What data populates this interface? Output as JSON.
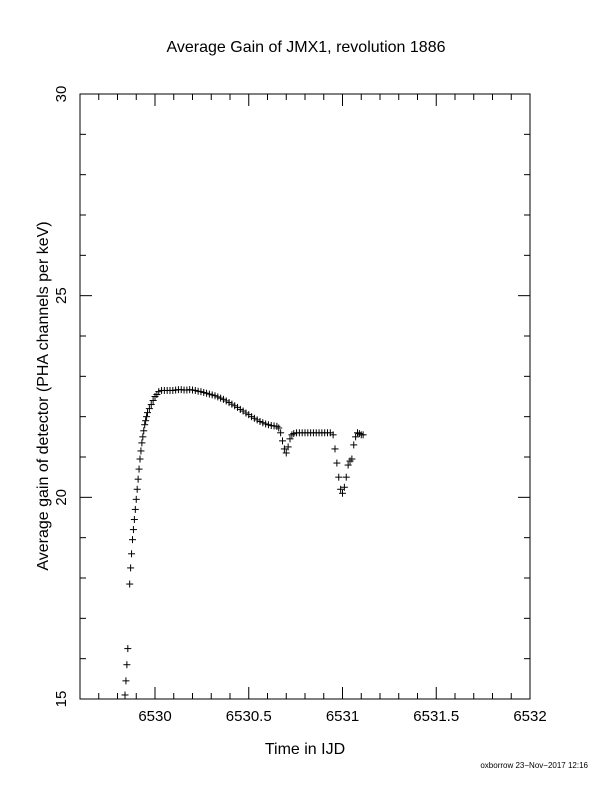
{
  "chart_data": {
    "type": "scatter",
    "title": "Average Gain of JMX1, revolution 1886",
    "xlabel": "Time in IJD",
    "ylabel": "Average gain of detector (PHA channels per keV)",
    "xlim": [
      6529.6,
      6532
    ],
    "ylim": [
      15,
      30
    ],
    "x_major_ticks": [
      6530,
      6530.5,
      6531,
      6531.5,
      6532
    ],
    "x_tick_labels": [
      "6530",
      "6530.5",
      "6531",
      "6531.5",
      "6532"
    ],
    "x_minor_step": 0.1,
    "y_major_ticks": [
      15,
      20,
      25,
      30
    ],
    "y_tick_labels": [
      "15",
      "20",
      "25",
      "30"
    ],
    "y_minor_step": 1,
    "grid": false,
    "marker": "plus",
    "color": "#000000",
    "points": [
      [
        6529.84,
        15.1
      ],
      [
        6529.845,
        15.45
      ],
      [
        6529.85,
        15.85
      ],
      [
        6529.855,
        16.25
      ],
      [
        6529.865,
        17.85
      ],
      [
        6529.87,
        18.25
      ],
      [
        6529.875,
        18.6
      ],
      [
        6529.88,
        18.95
      ],
      [
        6529.885,
        19.2
      ],
      [
        6529.89,
        19.45
      ],
      [
        6529.895,
        19.7
      ],
      [
        6529.9,
        19.95
      ],
      [
        6529.905,
        20.2
      ],
      [
        6529.91,
        20.45
      ],
      [
        6529.915,
        20.7
      ],
      [
        6529.92,
        20.95
      ],
      [
        6529.925,
        21.15
      ],
      [
        6529.93,
        21.35
      ],
      [
        6529.935,
        21.5
      ],
      [
        6529.94,
        21.65
      ],
      [
        6529.945,
        21.8
      ],
      [
        6529.95,
        21.9
      ],
      [
        6529.955,
        22.0
      ],
      [
        6529.96,
        22.1
      ],
      [
        6529.97,
        22.2
      ],
      [
        6529.98,
        22.3
      ],
      [
        6529.99,
        22.4
      ],
      [
        6530.0,
        22.5
      ],
      [
        6530.01,
        22.55
      ],
      [
        6530.02,
        22.62
      ],
      [
        6530.035,
        22.65
      ],
      [
        6530.05,
        22.65
      ],
      [
        6530.065,
        22.65
      ],
      [
        6530.08,
        22.65
      ],
      [
        6530.095,
        22.65
      ],
      [
        6530.11,
        22.66
      ],
      [
        6530.125,
        22.67
      ],
      [
        6530.14,
        22.67
      ],
      [
        6530.155,
        22.66
      ],
      [
        6530.17,
        22.66
      ],
      [
        6530.185,
        22.67
      ],
      [
        6530.2,
        22.66
      ],
      [
        6530.215,
        22.65
      ],
      [
        6530.23,
        22.63
      ],
      [
        6530.245,
        22.62
      ],
      [
        6530.26,
        22.6
      ],
      [
        6530.275,
        22.58
      ],
      [
        6530.29,
        22.56
      ],
      [
        6530.305,
        22.54
      ],
      [
        6530.32,
        22.52
      ],
      [
        6530.335,
        22.49
      ],
      [
        6530.35,
        22.46
      ],
      [
        6530.365,
        22.43
      ],
      [
        6530.38,
        22.39
      ],
      [
        6530.395,
        22.35
      ],
      [
        6530.41,
        22.31
      ],
      [
        6530.425,
        22.27
      ],
      [
        6530.44,
        22.23
      ],
      [
        6530.455,
        22.18
      ],
      [
        6530.47,
        22.14
      ],
      [
        6530.485,
        22.09
      ],
      [
        6530.5,
        22.05
      ],
      [
        6530.515,
        22.0
      ],
      [
        6530.53,
        21.96
      ],
      [
        6530.545,
        21.92
      ],
      [
        6530.56,
        21.88
      ],
      [
        6530.575,
        21.85
      ],
      [
        6530.59,
        21.82
      ],
      [
        6530.605,
        21.8
      ],
      [
        6530.62,
        21.78
      ],
      [
        6530.635,
        21.77
      ],
      [
        6530.65,
        21.76
      ],
      [
        6530.66,
        21.72
      ],
      [
        6530.67,
        21.6
      ],
      [
        6530.68,
        21.4
      ],
      [
        6530.69,
        21.2
      ],
      [
        6530.7,
        21.1
      ],
      [
        6530.71,
        21.25
      ],
      [
        6530.72,
        21.45
      ],
      [
        6530.73,
        21.55
      ],
      [
        6530.74,
        21.58
      ],
      [
        6530.755,
        21.6
      ],
      [
        6530.77,
        21.6
      ],
      [
        6530.785,
        21.6
      ],
      [
        6530.8,
        21.6
      ],
      [
        6530.815,
        21.6
      ],
      [
        6530.83,
        21.6
      ],
      [
        6530.845,
        21.6
      ],
      [
        6530.86,
        21.6
      ],
      [
        6530.875,
        21.6
      ],
      [
        6530.89,
        21.6
      ],
      [
        6530.905,
        21.6
      ],
      [
        6530.92,
        21.6
      ],
      [
        6530.935,
        21.6
      ],
      [
        6530.95,
        21.55
      ],
      [
        6530.96,
        21.2
      ],
      [
        6530.97,
        20.85
      ],
      [
        6530.98,
        20.5
      ],
      [
        6530.99,
        20.2
      ],
      [
        6531.0,
        20.1
      ],
      [
        6531.01,
        20.25
      ],
      [
        6531.02,
        20.5
      ],
      [
        6531.03,
        20.8
      ],
      [
        6531.04,
        20.9
      ],
      [
        6531.05,
        20.95
      ],
      [
        6531.06,
        21.3
      ],
      [
        6531.07,
        21.5
      ],
      [
        6531.08,
        21.6
      ],
      [
        6531.09,
        21.58
      ],
      [
        6531.1,
        21.55
      ],
      [
        6531.11,
        21.55
      ]
    ]
  },
  "footer_text": "oxborrow 23−Nov−2017 12:16"
}
